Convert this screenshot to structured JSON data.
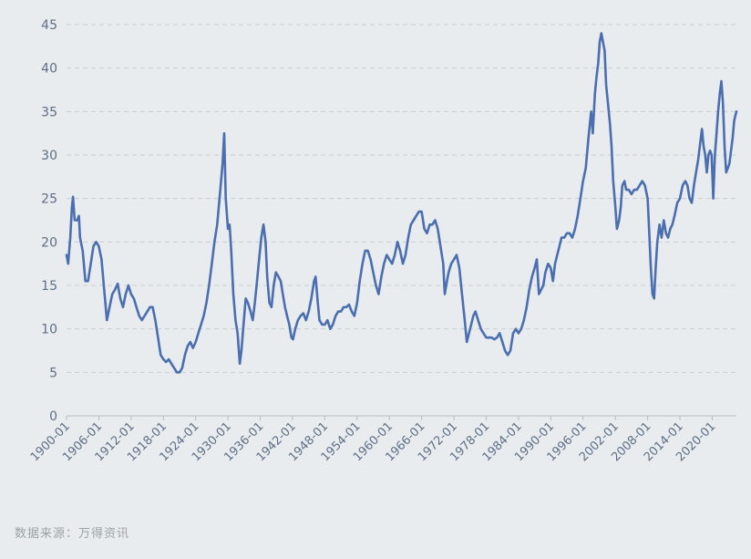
{
  "chart_data": {
    "type": "line",
    "title": "",
    "xlabel": "",
    "ylabel": "",
    "ylim": [
      0,
      45
    ],
    "xlim": [
      1900.0,
      2024.5
    ],
    "y_ticks": [
      0,
      5,
      10,
      15,
      20,
      25,
      30,
      35,
      40,
      45
    ],
    "x_tick_labels": [
      "1900-01",
      "1906-01",
      "1912-01",
      "1918-01",
      "1924-01",
      "1930-01",
      "1936-01",
      "1942-01",
      "1948-01",
      "1954-01",
      "1960-01",
      "1966-01",
      "1972-01",
      "1978-01",
      "1984-01",
      "1990-01",
      "1996-01",
      "2002-01",
      "2008-01",
      "2014-01",
      "2020-01"
    ],
    "grid": true,
    "colors": {
      "line": "#4a6eaf",
      "grid": "#c8ced2",
      "axis": "#b4bcc1",
      "tick_text": "#5d6f86"
    },
    "series": [
      {
        "name": "",
        "points": [
          [
            1900.0,
            18.5
          ],
          [
            1900.3,
            17.5
          ],
          [
            1900.7,
            20.5
          ],
          [
            1901.0,
            24.0
          ],
          [
            1901.2,
            25.2
          ],
          [
            1901.5,
            22.5
          ],
          [
            1902.0,
            22.5
          ],
          [
            1902.3,
            23.0
          ],
          [
            1902.5,
            20.5
          ],
          [
            1903.0,
            19.0
          ],
          [
            1903.5,
            15.5
          ],
          [
            1904.0,
            15.5
          ],
          [
            1904.5,
            17.5
          ],
          [
            1905.0,
            19.5
          ],
          [
            1905.5,
            20.0
          ],
          [
            1906.0,
            19.5
          ],
          [
            1906.5,
            18.0
          ],
          [
            1907.0,
            14.5
          ],
          [
            1907.5,
            11.0
          ],
          [
            1908.0,
            12.5
          ],
          [
            1908.5,
            14.0
          ],
          [
            1909.0,
            14.5
          ],
          [
            1909.5,
            15.2
          ],
          [
            1910.0,
            13.5
          ],
          [
            1910.5,
            12.5
          ],
          [
            1911.0,
            14.0
          ],
          [
            1911.5,
            15.0
          ],
          [
            1912.0,
            14.0
          ],
          [
            1912.5,
            13.5
          ],
          [
            1913.0,
            12.5
          ],
          [
            1913.5,
            11.5
          ],
          [
            1914.0,
            11.0
          ],
          [
            1914.5,
            11.5
          ],
          [
            1915.0,
            12.0
          ],
          [
            1915.5,
            12.5
          ],
          [
            1916.0,
            12.5
          ],
          [
            1916.5,
            11.0
          ],
          [
            1917.0,
            9.0
          ],
          [
            1917.5,
            7.0
          ],
          [
            1918.0,
            6.5
          ],
          [
            1918.5,
            6.2
          ],
          [
            1919.0,
            6.5
          ],
          [
            1919.5,
            6.0
          ],
          [
            1920.0,
            5.5
          ],
          [
            1920.5,
            5.0
          ],
          [
            1921.0,
            5.0
          ],
          [
            1921.5,
            5.5
          ],
          [
            1922.0,
            7.0
          ],
          [
            1922.5,
            8.0
          ],
          [
            1923.0,
            8.5
          ],
          [
            1923.5,
            7.8
          ],
          [
            1924.0,
            8.5
          ],
          [
            1924.5,
            9.5
          ],
          [
            1925.0,
            10.5
          ],
          [
            1925.5,
            11.5
          ],
          [
            1926.0,
            13.0
          ],
          [
            1926.5,
            15.0
          ],
          [
            1927.0,
            17.5
          ],
          [
            1927.5,
            20.0
          ],
          [
            1928.0,
            22.0
          ],
          [
            1928.5,
            25.5
          ],
          [
            1929.0,
            29.0
          ],
          [
            1929.3,
            32.5
          ],
          [
            1929.6,
            25.0
          ],
          [
            1930.0,
            21.5
          ],
          [
            1930.3,
            22.0
          ],
          [
            1930.6,
            19.0
          ],
          [
            1931.0,
            14.0
          ],
          [
            1931.4,
            11.0
          ],
          [
            1931.8,
            9.5
          ],
          [
            1932.2,
            6.0
          ],
          [
            1932.5,
            7.5
          ],
          [
            1932.9,
            10.5
          ],
          [
            1933.3,
            13.5
          ],
          [
            1933.7,
            13.0
          ],
          [
            1934.2,
            12.0
          ],
          [
            1934.6,
            11.0
          ],
          [
            1935.0,
            13.0
          ],
          [
            1935.4,
            15.5
          ],
          [
            1935.8,
            18.0
          ],
          [
            1936.2,
            20.5
          ],
          [
            1936.6,
            22.0
          ],
          [
            1937.0,
            20.0
          ],
          [
            1937.3,
            16.0
          ],
          [
            1937.7,
            13.0
          ],
          [
            1938.1,
            12.5
          ],
          [
            1938.5,
            15.0
          ],
          [
            1938.9,
            16.5
          ],
          [
            1939.4,
            16.0
          ],
          [
            1939.8,
            15.5
          ],
          [
            1940.2,
            14.0
          ],
          [
            1940.6,
            12.5
          ],
          [
            1941.0,
            11.5
          ],
          [
            1941.4,
            10.5
          ],
          [
            1941.8,
            9.0
          ],
          [
            1942.1,
            8.8
          ],
          [
            1942.5,
            10.0
          ],
          [
            1943.0,
            11.0
          ],
          [
            1943.5,
            11.5
          ],
          [
            1944.0,
            11.8
          ],
          [
            1944.5,
            11.0
          ],
          [
            1945.0,
            12.0
          ],
          [
            1945.5,
            13.5
          ],
          [
            1946.0,
            15.5
          ],
          [
            1946.3,
            16.0
          ],
          [
            1946.7,
            13.0
          ],
          [
            1947.0,
            11.0
          ],
          [
            1947.5,
            10.5
          ],
          [
            1948.0,
            10.5
          ],
          [
            1948.5,
            11.0
          ],
          [
            1949.0,
            10.0
          ],
          [
            1949.5,
            10.5
          ],
          [
            1950.0,
            11.5
          ],
          [
            1950.5,
            12.0
          ],
          [
            1951.0,
            12.0
          ],
          [
            1951.5,
            12.5
          ],
          [
            1952.0,
            12.5
          ],
          [
            1952.5,
            12.8
          ],
          [
            1953.0,
            12.0
          ],
          [
            1953.5,
            11.5
          ],
          [
            1954.0,
            13.0
          ],
          [
            1954.5,
            15.5
          ],
          [
            1955.0,
            17.5
          ],
          [
            1955.5,
            19.0
          ],
          [
            1956.0,
            19.0
          ],
          [
            1956.5,
            18.0
          ],
          [
            1957.0,
            16.5
          ],
          [
            1957.5,
            15.0
          ],
          [
            1958.0,
            14.0
          ],
          [
            1958.5,
            16.0
          ],
          [
            1959.0,
            17.5
          ],
          [
            1959.5,
            18.5
          ],
          [
            1960.0,
            18.0
          ],
          [
            1960.5,
            17.5
          ],
          [
            1961.0,
            18.5
          ],
          [
            1961.5,
            20.0
          ],
          [
            1962.0,
            19.0
          ],
          [
            1962.5,
            17.5
          ],
          [
            1963.0,
            18.5
          ],
          [
            1963.5,
            20.5
          ],
          [
            1964.0,
            22.0
          ],
          [
            1964.5,
            22.5
          ],
          [
            1965.0,
            23.0
          ],
          [
            1965.5,
            23.5
          ],
          [
            1966.0,
            23.5
          ],
          [
            1966.5,
            21.5
          ],
          [
            1967.0,
            21.0
          ],
          [
            1967.5,
            22.0
          ],
          [
            1968.0,
            22.0
          ],
          [
            1968.5,
            22.5
          ],
          [
            1969.0,
            21.5
          ],
          [
            1969.5,
            19.5
          ],
          [
            1970.0,
            17.5
          ],
          [
            1970.3,
            14.0
          ],
          [
            1970.7,
            15.5
          ],
          [
            1971.0,
            16.5
          ],
          [
            1971.5,
            17.5
          ],
          [
            1972.0,
            18.0
          ],
          [
            1972.5,
            18.5
          ],
          [
            1973.0,
            17.0
          ],
          [
            1973.5,
            14.0
          ],
          [
            1974.0,
            11.0
          ],
          [
            1974.4,
            8.5
          ],
          [
            1974.8,
            9.5
          ],
          [
            1975.2,
            10.5
          ],
          [
            1975.6,
            11.5
          ],
          [
            1976.0,
            12.0
          ],
          [
            1976.5,
            11.0
          ],
          [
            1977.0,
            10.0
          ],
          [
            1977.5,
            9.5
          ],
          [
            1978.0,
            9.0
          ],
          [
            1978.5,
            9.0
          ],
          [
            1979.0,
            9.0
          ],
          [
            1979.5,
            8.8
          ],
          [
            1980.0,
            9.0
          ],
          [
            1980.5,
            9.5
          ],
          [
            1981.0,
            8.5
          ],
          [
            1981.5,
            7.5
          ],
          [
            1982.0,
            7.0
          ],
          [
            1982.5,
            7.5
          ],
          [
            1983.0,
            9.5
          ],
          [
            1983.5,
            10.0
          ],
          [
            1984.0,
            9.5
          ],
          [
            1984.5,
            10.0
          ],
          [
            1985.0,
            11.0
          ],
          [
            1985.5,
            12.5
          ],
          [
            1986.0,
            14.5
          ],
          [
            1986.5,
            16.0
          ],
          [
            1987.0,
            17.0
          ],
          [
            1987.4,
            18.0
          ],
          [
            1987.8,
            14.0
          ],
          [
            1988.2,
            14.5
          ],
          [
            1988.6,
            15.0
          ],
          [
            1989.0,
            16.5
          ],
          [
            1989.5,
            17.5
          ],
          [
            1990.0,
            17.0
          ],
          [
            1990.4,
            15.5
          ],
          [
            1990.8,
            17.5
          ],
          [
            1991.2,
            18.5
          ],
          [
            1991.6,
            19.5
          ],
          [
            1992.0,
            20.5
          ],
          [
            1992.5,
            20.5
          ],
          [
            1993.0,
            21.0
          ],
          [
            1993.5,
            21.0
          ],
          [
            1994.0,
            20.5
          ],
          [
            1994.5,
            21.5
          ],
          [
            1995.0,
            23.0
          ],
          [
            1995.5,
            25.0
          ],
          [
            1996.0,
            27.0
          ],
          [
            1996.5,
            28.5
          ],
          [
            1997.0,
            32.0
          ],
          [
            1997.5,
            35.0
          ],
          [
            1997.8,
            32.5
          ],
          [
            1998.2,
            37.0
          ],
          [
            1998.5,
            39.0
          ],
          [
            1998.8,
            40.5
          ],
          [
            1999.1,
            43.0
          ],
          [
            1999.4,
            44.0
          ],
          [
            1999.7,
            43.0
          ],
          [
            2000.0,
            42.0
          ],
          [
            2000.3,
            38.0
          ],
          [
            2000.7,
            35.5
          ],
          [
            2001.0,
            33.5
          ],
          [
            2001.3,
            31.0
          ],
          [
            2001.6,
            27.0
          ],
          [
            2002.0,
            24.0
          ],
          [
            2002.3,
            21.5
          ],
          [
            2002.7,
            22.5
          ],
          [
            2003.0,
            24.0
          ],
          [
            2003.3,
            26.5
          ],
          [
            2003.7,
            27.0
          ],
          [
            2004.0,
            26.0
          ],
          [
            2004.5,
            26.0
          ],
          [
            2005.0,
            25.5
          ],
          [
            2005.5,
            26.0
          ],
          [
            2006.0,
            26.0
          ],
          [
            2006.5,
            26.5
          ],
          [
            2007.0,
            27.0
          ],
          [
            2007.5,
            26.5
          ],
          [
            2008.0,
            25.0
          ],
          [
            2008.3,
            21.0
          ],
          [
            2008.6,
            17.0
          ],
          [
            2008.9,
            14.0
          ],
          [
            2009.2,
            13.5
          ],
          [
            2009.5,
            17.0
          ],
          [
            2009.8,
            20.0
          ],
          [
            2010.2,
            22.0
          ],
          [
            2010.6,
            20.5
          ],
          [
            2011.0,
            22.5
          ],
          [
            2011.4,
            21.0
          ],
          [
            2011.8,
            20.5
          ],
          [
            2012.2,
            21.5
          ],
          [
            2012.6,
            22.0
          ],
          [
            2013.0,
            23.0
          ],
          [
            2013.5,
            24.5
          ],
          [
            2014.0,
            25.0
          ],
          [
            2014.5,
            26.5
          ],
          [
            2015.0,
            27.0
          ],
          [
            2015.4,
            26.5
          ],
          [
            2015.8,
            25.0
          ],
          [
            2016.2,
            24.5
          ],
          [
            2016.6,
            26.5
          ],
          [
            2017.0,
            28.0
          ],
          [
            2017.4,
            29.5
          ],
          [
            2017.8,
            31.5
          ],
          [
            2018.1,
            33.0
          ],
          [
            2018.4,
            31.0
          ],
          [
            2018.7,
            30.0
          ],
          [
            2019.0,
            28.0
          ],
          [
            2019.3,
            30.0
          ],
          [
            2019.6,
            30.5
          ],
          [
            2019.9,
            30.0
          ],
          [
            2020.2,
            25.0
          ],
          [
            2020.5,
            30.0
          ],
          [
            2020.8,
            32.5
          ],
          [
            2021.1,
            35.0
          ],
          [
            2021.4,
            37.0
          ],
          [
            2021.7,
            38.5
          ],
          [
            2022.0,
            36.0
          ],
          [
            2022.3,
            31.0
          ],
          [
            2022.6,
            28.0
          ],
          [
            2022.9,
            28.5
          ],
          [
            2023.2,
            29.0
          ],
          [
            2023.5,
            30.5
          ],
          [
            2023.8,
            32.0
          ],
          [
            2024.1,
            34.0
          ],
          [
            2024.5,
            35.0
          ]
        ]
      }
    ]
  },
  "source_text": "数据来源：万得资讯"
}
